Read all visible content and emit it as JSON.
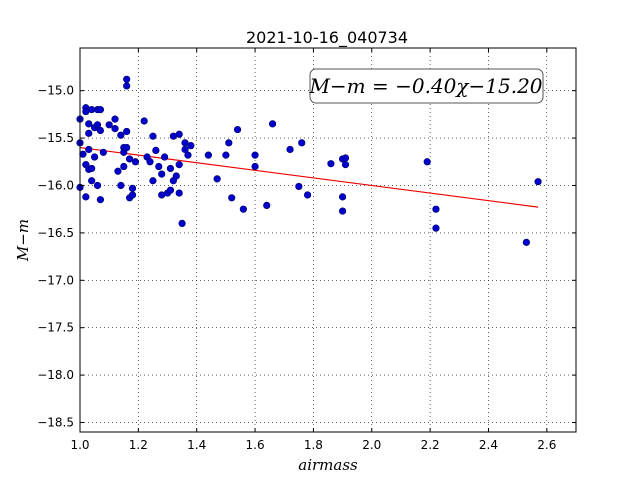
{
  "chart_data": {
    "type": "scatter",
    "title": "2021-10-16_040734",
    "xlabel": "airmass",
    "ylabel": "M−m",
    "xlim": [
      1.0,
      2.7
    ],
    "ylim": [
      -18.6,
      -14.55
    ],
    "y_inverted": false,
    "grid": true,
    "xticks": [
      "1.0",
      "1.2",
      "1.4",
      "1.6",
      "1.8",
      "2.0",
      "2.2",
      "2.4",
      "2.6"
    ],
    "yticks": [
      "−15.0",
      "−15.5",
      "−16.0",
      "−16.5",
      "−17.0",
      "−17.5",
      "−18.0",
      "−18.5"
    ],
    "annotation": "M−m = −0.40χ−15.20",
    "colors": {
      "points": "#0000cc",
      "fit_line": "#ee0000"
    },
    "fit_line": {
      "slope": -0.4,
      "intercept": -15.2,
      "x_range": [
        1.0,
        2.57
      ]
    },
    "points": [
      [
        1.0,
        -15.3
      ],
      [
        1.0,
        -15.55
      ],
      [
        1.0,
        -16.02
      ],
      [
        1.01,
        -15.67
      ],
      [
        1.02,
        -15.18
      ],
      [
        1.02,
        -15.22
      ],
      [
        1.02,
        -15.78
      ],
      [
        1.02,
        -16.12
      ],
      [
        1.03,
        -15.35
      ],
      [
        1.03,
        -15.45
      ],
      [
        1.03,
        -15.62
      ],
      [
        1.03,
        -15.83
      ],
      [
        1.04,
        -15.2
      ],
      [
        1.04,
        -15.95
      ],
      [
        1.04,
        -15.82
      ],
      [
        1.05,
        -15.39
      ],
      [
        1.05,
        -15.7
      ],
      [
        1.06,
        -15.2
      ],
      [
        1.06,
        -15.36
      ],
      [
        1.06,
        -16.0
      ],
      [
        1.07,
        -15.2
      ],
      [
        1.07,
        -15.42
      ],
      [
        1.07,
        -16.15
      ],
      [
        1.08,
        -15.65
      ],
      [
        1.1,
        -15.36
      ],
      [
        1.12,
        -15.3
      ],
      [
        1.12,
        -15.4
      ],
      [
        1.13,
        -15.85
      ],
      [
        1.14,
        -16.0
      ],
      [
        1.14,
        -15.47
      ],
      [
        1.15,
        -15.6
      ],
      [
        1.15,
        -15.65
      ],
      [
        1.15,
        -15.8
      ],
      [
        1.16,
        -14.88
      ],
      [
        1.16,
        -14.95
      ],
      [
        1.16,
        -15.43
      ],
      [
        1.16,
        -15.6
      ],
      [
        1.17,
        -16.13
      ],
      [
        1.17,
        -15.72
      ],
      [
        1.18,
        -16.03
      ],
      [
        1.18,
        -16.1
      ],
      [
        1.19,
        -15.75
      ],
      [
        1.22,
        -15.32
      ],
      [
        1.23,
        -15.7
      ],
      [
        1.24,
        -15.75
      ],
      [
        1.25,
        -15.48
      ],
      [
        1.25,
        -15.95
      ],
      [
        1.26,
        -15.63
      ],
      [
        1.27,
        -15.8
      ],
      [
        1.28,
        -15.88
      ],
      [
        1.28,
        -16.1
      ],
      [
        1.29,
        -15.7
      ],
      [
        1.3,
        -16.08
      ],
      [
        1.31,
        -15.82
      ],
      [
        1.31,
        -16.05
      ],
      [
        1.32,
        -15.48
      ],
      [
        1.32,
        -15.95
      ],
      [
        1.33,
        -15.9
      ],
      [
        1.34,
        -15.46
      ],
      [
        1.34,
        -15.78
      ],
      [
        1.34,
        -16.08
      ],
      [
        1.35,
        -16.4
      ],
      [
        1.36,
        -15.55
      ],
      [
        1.36,
        -15.62
      ],
      [
        1.37,
        -15.68
      ],
      [
        1.38,
        -15.58
      ],
      [
        1.44,
        -15.68
      ],
      [
        1.47,
        -15.93
      ],
      [
        1.5,
        -15.68
      ],
      [
        1.51,
        -15.55
      ],
      [
        1.52,
        -16.13
      ],
      [
        1.54,
        -15.41
      ],
      [
        1.56,
        -16.25
      ],
      [
        1.6,
        -15.68
      ],
      [
        1.6,
        -15.8
      ],
      [
        1.64,
        -16.21
      ],
      [
        1.66,
        -15.35
      ],
      [
        1.72,
        -15.62
      ],
      [
        1.75,
        -16.01
      ],
      [
        1.76,
        -15.55
      ],
      [
        1.78,
        -16.1
      ],
      [
        1.86,
        -15.77
      ],
      [
        1.9,
        -15.72
      ],
      [
        1.9,
        -16.12
      ],
      [
        1.9,
        -16.27
      ],
      [
        1.91,
        -15.78
      ],
      [
        1.91,
        -15.71
      ],
      [
        2.19,
        -15.75
      ],
      [
        2.22,
        -16.25
      ],
      [
        2.22,
        -16.45
      ],
      [
        2.53,
        -16.6
      ],
      [
        2.57,
        -15.96
      ]
    ]
  }
}
